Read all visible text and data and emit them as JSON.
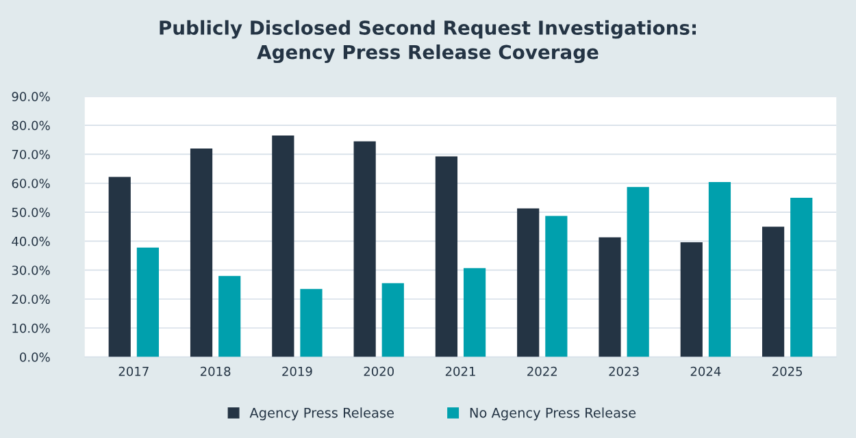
{
  "chart_data": {
    "type": "bar",
    "title": "Publicly Disclosed Second Request Investigations:\nAgency Press Release Coverage",
    "categories": [
      "2017",
      "2018",
      "2019",
      "2020",
      "2021",
      "2022",
      "2023",
      "2024",
      "2025"
    ],
    "series": [
      {
        "name": "Agency Press Release",
        "color": "#243444",
        "values": [
          62.2,
          72.0,
          76.5,
          74.5,
          69.3,
          51.3,
          41.3,
          39.6,
          45.0
        ]
      },
      {
        "name": "No Agency Press Release",
        "color": "#00a0ad",
        "values": [
          37.8,
          28.0,
          23.5,
          25.5,
          30.7,
          48.7,
          58.7,
          60.4,
          55.0
        ]
      }
    ],
    "ylim": [
      0,
      90
    ],
    "yticks": [
      {
        "value": 0,
        "label": "0.0%"
      },
      {
        "value": 10,
        "label": "10.0%"
      },
      {
        "value": 20,
        "label": "20.0%"
      },
      {
        "value": 30,
        "label": "30.0%"
      },
      {
        "value": 40,
        "label": "40.0%"
      },
      {
        "value": 50,
        "label": "50.0%"
      },
      {
        "value": 60,
        "label": "60.0%"
      },
      {
        "value": 70,
        "label": "70.0%"
      },
      {
        "value": 80,
        "label": "80.0%"
      },
      {
        "value": 90,
        "label": "90.0%"
      }
    ],
    "grid": "y",
    "legend": "bottom"
  }
}
